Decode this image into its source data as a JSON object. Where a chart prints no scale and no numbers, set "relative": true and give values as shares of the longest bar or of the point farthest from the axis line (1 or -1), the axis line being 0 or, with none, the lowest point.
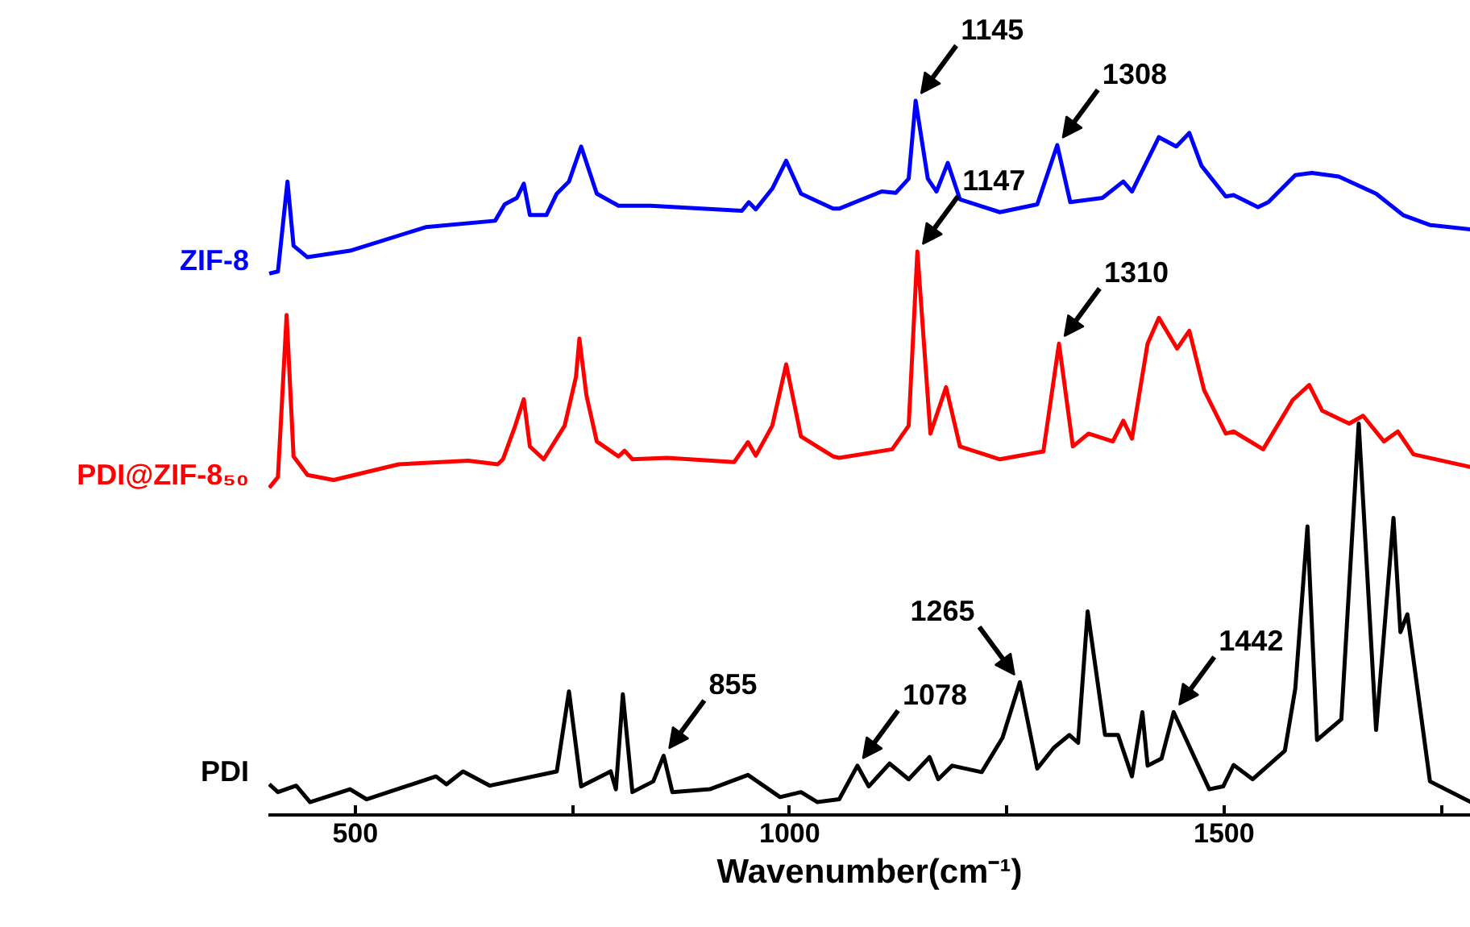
{
  "chart_data": {
    "type": "line",
    "relative": true,
    "xlabel": "Wavenumber(cm⁻¹)",
    "xlim": [
      400,
      1784
    ],
    "xticks": [
      500,
      {
        "value": 750,
        "label": null
      },
      1000,
      {
        "value": 1250,
        "label": null
      },
      1500,
      {
        "value": 1750,
        "label": null
      }
    ],
    "grid": false,
    "marker": "none",
    "line_style": "solid",
    "series": [
      {
        "name": "ZIF-8",
        "color": "#0000ff",
        "x": [
          401,
          411,
          422,
          429,
          445,
          494,
          581,
          661,
          672,
          686,
          694,
          701,
          720,
          732,
          746,
          760,
          778,
          803,
          840,
          945,
          953,
          961,
          980,
          996,
          1013,
          1050,
          1057,
          1106,
          1122,
          1137,
          1145,
          1159,
          1169,
          1182,
          1196,
          1242,
          1285,
          1308,
          1323,
          1360,
          1384,
          1394,
          1425,
          1445,
          1460,
          1474,
          1502,
          1511,
          1539,
          1551,
          1582,
          1601,
          1632,
          1675,
          1706,
          1737,
          1784
        ],
        "values": [
          0.758,
          0.761,
          0.887,
          0.797,
          0.781,
          0.79,
          0.823,
          0.832,
          0.855,
          0.864,
          0.884,
          0.84,
          0.84,
          0.87,
          0.887,
          0.936,
          0.87,
          0.853,
          0.853,
          0.846,
          0.858,
          0.848,
          0.877,
          0.916,
          0.87,
          0.849,
          0.849,
          0.873,
          0.871,
          0.891,
          1.0,
          0.891,
          0.873,
          0.913,
          0.862,
          0.844,
          0.855,
          0.938,
          0.858,
          0.864,
          0.887,
          0.873,
          0.949,
          0.936,
          0.955,
          0.909,
          0.866,
          0.868,
          0.851,
          0.858,
          0.896,
          0.899,
          0.894,
          0.87,
          0.84,
          0.826,
          0.82
        ]
      },
      {
        "name": "PDI@ZIF-8₅₀",
        "color": "#ff0000",
        "x": [
          401,
          411,
          421,
          429,
          445,
          475,
          550,
          630,
          664,
          670,
          683,
          694,
          701,
          717,
          741,
          754,
          758,
          766,
          778,
          803,
          810,
          819,
          859,
          936,
          952,
          961,
          980,
          996,
          1013,
          1050,
          1057,
          1118,
          1137,
          1147,
          1162,
          1180,
          1196,
          1242,
          1292,
          1310,
          1326,
          1344,
          1372,
          1384,
          1394,
          1412,
          1425,
          1446,
          1460,
          1477,
          1502,
          1511,
          1545,
          1579,
          1598,
          1613,
          1644,
          1660,
          1684,
          1700,
          1718,
          1784
        ],
        "values": [
          0.458,
          0.473,
          0.7,
          0.502,
          0.476,
          0.469,
          0.491,
          0.496,
          0.491,
          0.498,
          0.541,
          0.582,
          0.516,
          0.498,
          0.545,
          0.613,
          0.667,
          0.588,
          0.523,
          0.502,
          0.51,
          0.498,
          0.5,
          0.494,
          0.522,
          0.503,
          0.545,
          0.631,
          0.53,
          0.502,
          0.5,
          0.512,
          0.545,
          0.789,
          0.534,
          0.599,
          0.516,
          0.498,
          0.509,
          0.66,
          0.516,
          0.534,
          0.523,
          0.552,
          0.527,
          0.66,
          0.696,
          0.653,
          0.678,
          0.595,
          0.534,
          0.537,
          0.512,
          0.581,
          0.602,
          0.566,
          0.548,
          0.559,
          0.523,
          0.537,
          0.505,
          0.487
        ]
      },
      {
        "name": "PDI",
        "color": "#000000",
        "x": [
          401,
          411,
          432,
          448,
          494,
          513,
          593,
          605,
          624,
          655,
          732,
          746,
          760,
          794,
          800,
          808,
          819,
          843,
          855,
          865,
          908,
          952,
          989,
          1013,
          1032,
          1057,
          1078,
          1091,
          1115,
          1137,
          1161,
          1171,
          1187,
          1221,
          1245,
          1265,
          1285,
          1304,
          1322,
          1332,
          1343,
          1363,
          1378,
          1394,
          1406,
          1412,
          1428,
          1442,
          1465,
          1483,
          1499,
          1511,
          1533,
          1570,
          1582,
          1596,
          1607,
          1635,
          1655,
          1675,
          1695,
          1703,
          1711,
          1737,
          1784
        ],
        "values": [
          0.043,
          0.032,
          0.041,
          0.018,
          0.036,
          0.022,
          0.054,
          0.043,
          0.061,
          0.041,
          0.061,
          0.173,
          0.04,
          0.061,
          0.036,
          0.169,
          0.032,
          0.047,
          0.083,
          0.032,
          0.036,
          0.056,
          0.025,
          0.032,
          0.018,
          0.022,
          0.069,
          0.04,
          0.072,
          0.05,
          0.081,
          0.05,
          0.069,
          0.06,
          0.108,
          0.186,
          0.065,
          0.094,
          0.112,
          0.101,
          0.285,
          0.112,
          0.112,
          0.054,
          0.144,
          0.069,
          0.079,
          0.144,
          0.083,
          0.036,
          0.04,
          0.07,
          0.05,
          0.09,
          0.177,
          0.404,
          0.105,
          0.134,
          0.548,
          0.119,
          0.416,
          0.256,
          0.281,
          0.047,
          0.018
        ]
      }
    ],
    "annotations": [
      {
        "text": "1145",
        "x": 1145,
        "y": 1.0
      },
      {
        "text": "1308",
        "x": 1308,
        "y": 0.938
      },
      {
        "text": "1147",
        "x": 1147,
        "y": 0.789
      },
      {
        "text": "1310",
        "x": 1310,
        "y": 0.66
      },
      {
        "text": "855",
        "x": 855,
        "y": 0.083
      },
      {
        "text": "1078",
        "x": 1078,
        "y": 0.069
      },
      {
        "text": "1265",
        "x": 1265,
        "y": 0.186
      },
      {
        "text": "1442",
        "x": 1442,
        "y": 0.144
      }
    ]
  }
}
